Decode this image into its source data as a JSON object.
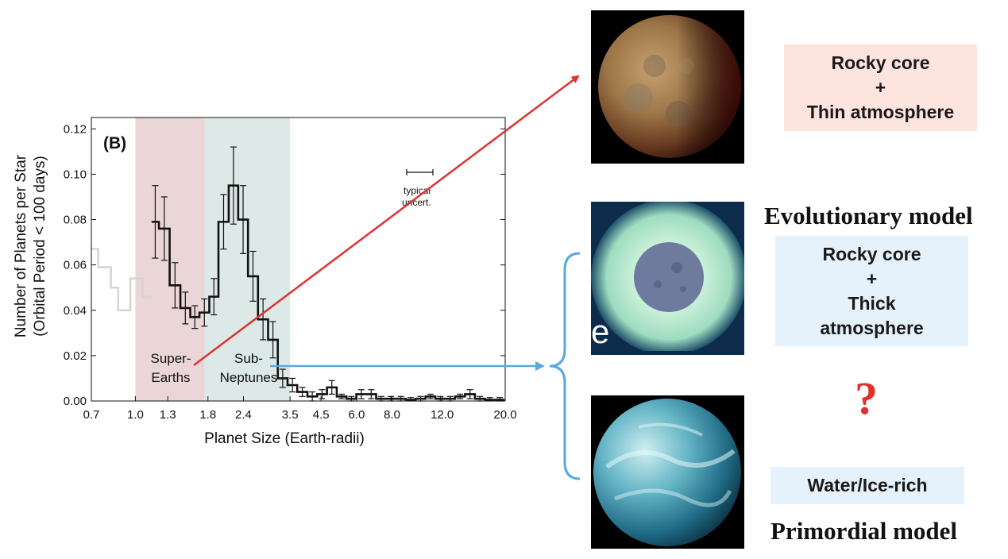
{
  "chart_data": {
    "type": "histogram",
    "panel_label": "(B)",
    "xlabel": "Planet Size (Earth-radii)",
    "ylabel_line1": "Number of Planets per Star",
    "ylabel_line2": "(Orbital Period < 100 days)",
    "x_scale": "log",
    "xlim": [
      0.7,
      20.0
    ],
    "ylim": [
      0.0,
      0.125
    ],
    "xticks": [
      0.7,
      1.0,
      1.3,
      1.8,
      2.4,
      3.5,
      4.5,
      6.0,
      8.0,
      12.0,
      20.0
    ],
    "xtick_labels": [
      "0.7",
      "1.0",
      "1.3",
      "1.8",
      "2.4",
      "3.5",
      "4.5",
      "6.0",
      "8.0",
      "12.0",
      "20.0"
    ],
    "yticks": [
      0.0,
      0.02,
      0.04,
      0.06,
      0.08,
      0.1,
      0.12
    ],
    "ytick_labels": [
      "0.00",
      "0.02",
      "0.04",
      "0.06",
      "0.08",
      "0.10",
      "0.12"
    ],
    "bin_edges": [
      1.14,
      1.21,
      1.32,
      1.44,
      1.56,
      1.68,
      1.82,
      1.96,
      2.13,
      2.3,
      2.49,
      2.7,
      2.93,
      3.17,
      3.43,
      3.71,
      4.03,
      4.36,
      4.72,
      5.11,
      5.53,
      5.99,
      6.49,
      7.03,
      7.62,
      8.25,
      8.94,
      9.68,
      10.49,
      11.36,
      12.31,
      13.33,
      14.44,
      15.65,
      16.96,
      18.37,
      19.9
    ],
    "values": [
      0.079,
      0.076,
      0.051,
      0.041,
      0.037,
      0.039,
      0.046,
      0.079,
      0.095,
      0.08,
      0.055,
      0.036,
      0.027,
      0.01,
      0.007,
      0.004,
      0.002,
      0.003,
      0.006,
      0.002,
      0.001,
      0.003,
      0.003,
      0.001,
      0.001,
      0.001,
      0.0005,
      0.001,
      0.002,
      0.001,
      0.001,
      0.002,
      0.003,
      0.001,
      0.0005,
      0.0005
    ],
    "errors": [
      0.016,
      0.014,
      0.01,
      0.007,
      0.005,
      0.006,
      0.008,
      0.012,
      0.017,
      0.015,
      0.011,
      0.009,
      0.008,
      0.004,
      0.003,
      0.002,
      0.002,
      0.002,
      0.003,
      0.001,
      0.001,
      0.002,
      0.002,
      0.001,
      0.001,
      0.001,
      0.001,
      0.001,
      0.001,
      0.001,
      0.001,
      0.001,
      0.002,
      0.001,
      0.001,
      0.001
    ],
    "incomplete_series": {
      "steps": [
        [
          0.7,
          0.067
        ],
        [
          0.74,
          0.059
        ],
        [
          0.82,
          0.05
        ],
        [
          0.87,
          0.04
        ],
        [
          0.96,
          0.054
        ],
        [
          1.06,
          0.046
        ],
        [
          1.14,
          0.046
        ]
      ]
    },
    "regions": [
      {
        "label_line1": "Super-",
        "label_line2": "Earths",
        "x_range": [
          1.0,
          1.75
        ],
        "color": "#ebd6d7"
      },
      {
        "label_line1": "Sub-",
        "label_line2": "Neptunes",
        "x_range": [
          1.75,
          3.5
        ],
        "color": "#dce9e6"
      }
    ],
    "annotation_line1": "typical",
    "annotation_line2": "uncert."
  },
  "right_panel": {
    "rocky_thin": {
      "line1": "Rocky core",
      "line2": "+",
      "line3": "Thin atmosphere",
      "bg": "#fde4df"
    },
    "evolutionary_title": "Evolutionary model",
    "rocky_thick": {
      "line1": "Rocky core",
      "line2": "+",
      "line3": "Thick",
      "line4": "atmosphere",
      "bg": "#e5f1fb"
    },
    "question_mark": "?",
    "water_ice": {
      "label": "Water/Ice-rich",
      "bg": "#e5f1fb"
    },
    "primordial_title": "Primordial model",
    "planet_glow_letter": "e"
  },
  "colors": {
    "red_arrow": "#e0312e",
    "blue_arrow": "#59a9de",
    "question": "#e0312e"
  }
}
